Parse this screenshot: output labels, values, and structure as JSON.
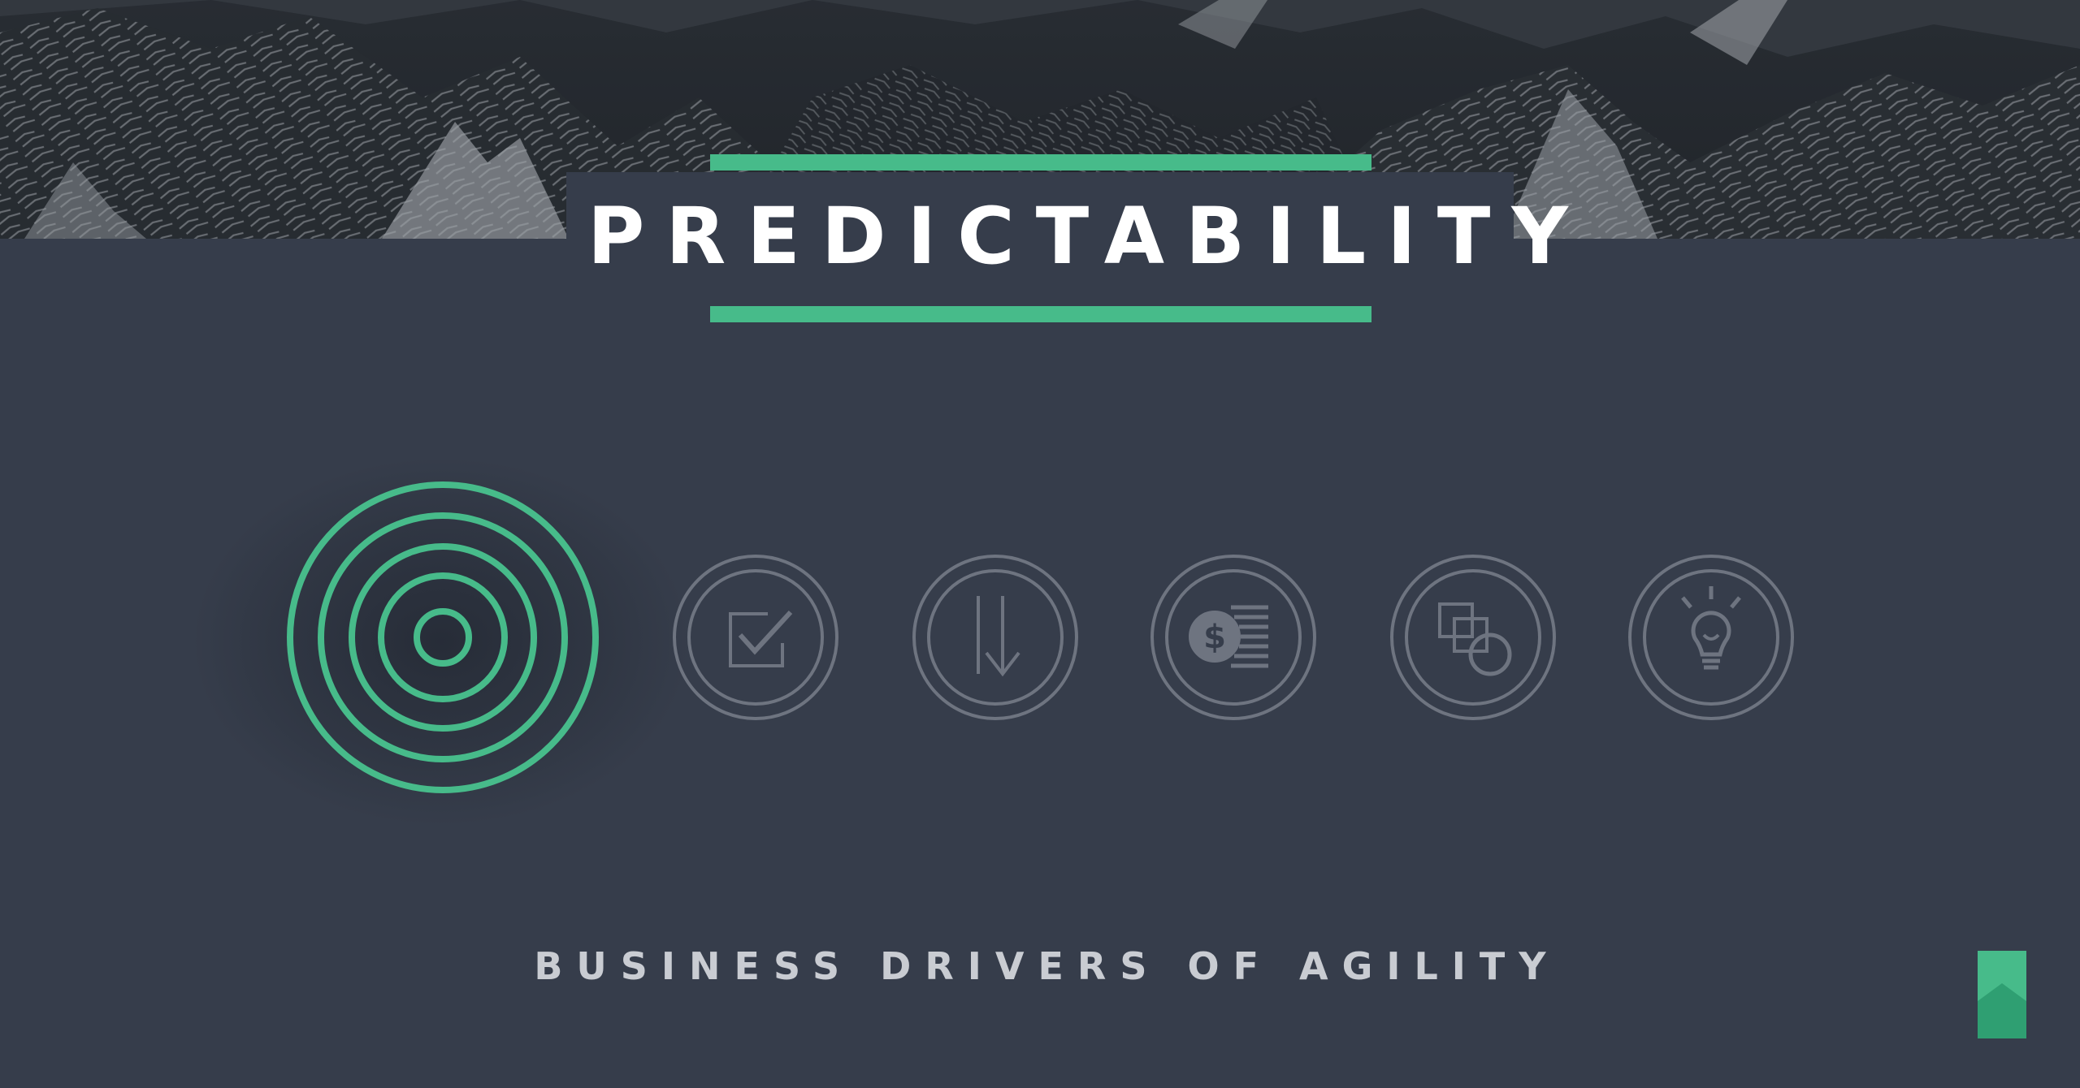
{
  "slide": {
    "title": "PREDICTABILITY",
    "subtitle": "BUSINESS DRIVERS OF AGILITY"
  },
  "colors": {
    "background": "#363d4b",
    "accent": "#47bb8a",
    "icon_inactive": "#6e7480",
    "title_text": "#ffffff",
    "subtitle_text": "#c9ccd2"
  },
  "drivers": [
    {
      "icon": "target-icon",
      "active": true
    },
    {
      "icon": "checkbox-icon",
      "active": false
    },
    {
      "icon": "down-arrow-icon",
      "active": false
    },
    {
      "icon": "dollar-coins-icon",
      "active": false
    },
    {
      "icon": "shapes-icon",
      "active": false
    },
    {
      "icon": "lightbulb-icon",
      "active": false
    }
  ]
}
